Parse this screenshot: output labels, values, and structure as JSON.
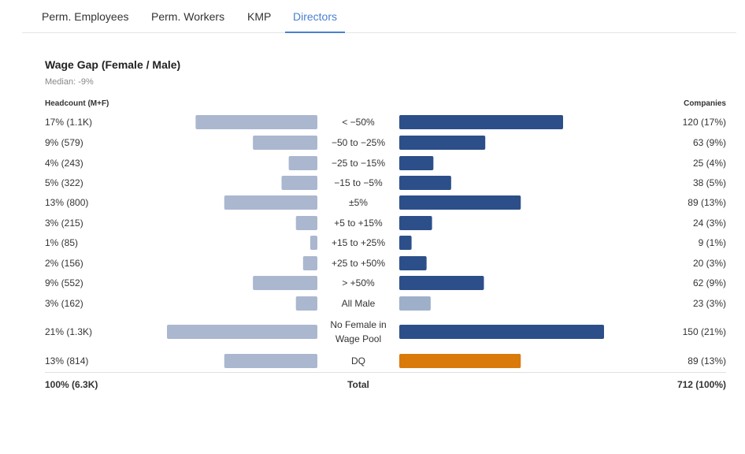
{
  "tabs": [
    "Perm. Employees",
    "Perm. Workers",
    "KMP",
    "Directors"
  ],
  "active_tab": 3,
  "chart_data": {
    "type": "butterfly",
    "title": "Wage Gap (Female / Male)",
    "subtitle": "Median: -9%",
    "left_header": "Headcount (M+F)",
    "right_header": "Companies",
    "categories": [
      "< −50%",
      "−50 to −25%",
      "−25 to −15%",
      "−15 to −5%",
      "±5%",
      "+5 to +15%",
      "+15 to +25%",
      "+25 to +50%",
      "> +50%",
      "All Male",
      "No Female in Wage Pool",
      "DQ"
    ],
    "series": [
      {
        "name": "Headcount (M+F)",
        "color": "#aab7cf",
        "values": [
          17,
          9,
          4,
          5,
          13,
          3,
          1,
          2,
          9,
          3,
          21,
          13
        ],
        "value_labels": [
          "17% (1.1K)",
          "9% (579)",
          "4% (243)",
          "5% (322)",
          "13% (800)",
          "3% (215)",
          "1% (85)",
          "2% (156)",
          "9% (552)",
          "3% (162)",
          "21% (1.3K)",
          "13% (814)"
        ]
      },
      {
        "name": "Companies",
        "color": "#2c4f8a",
        "colors": [
          "#2c4f8a",
          "#2c4f8a",
          "#2c4f8a",
          "#2c4f8a",
          "#2c4f8a",
          "#2c4f8a",
          "#2c4f8a",
          "#2c4f8a",
          "#2c4f8a",
          "#9eafca",
          "#2c4f8a",
          "#d97a0a"
        ],
        "values": [
          120,
          63,
          25,
          38,
          89,
          24,
          9,
          20,
          62,
          23,
          150,
          89
        ],
        "value_labels": [
          "120 (17%)",
          "63 (9%)",
          "25 (4%)",
          "38 (5%)",
          "89 (13%)",
          "24 (3%)",
          "9 (1%)",
          "20 (3%)",
          "62 (9%)",
          "23 (3%)",
          "150 (21%)",
          "89 (13%)"
        ]
      }
    ],
    "total": {
      "left": "100% (6.3K)",
      "label": "Total",
      "right": "712 (100%)"
    }
  }
}
